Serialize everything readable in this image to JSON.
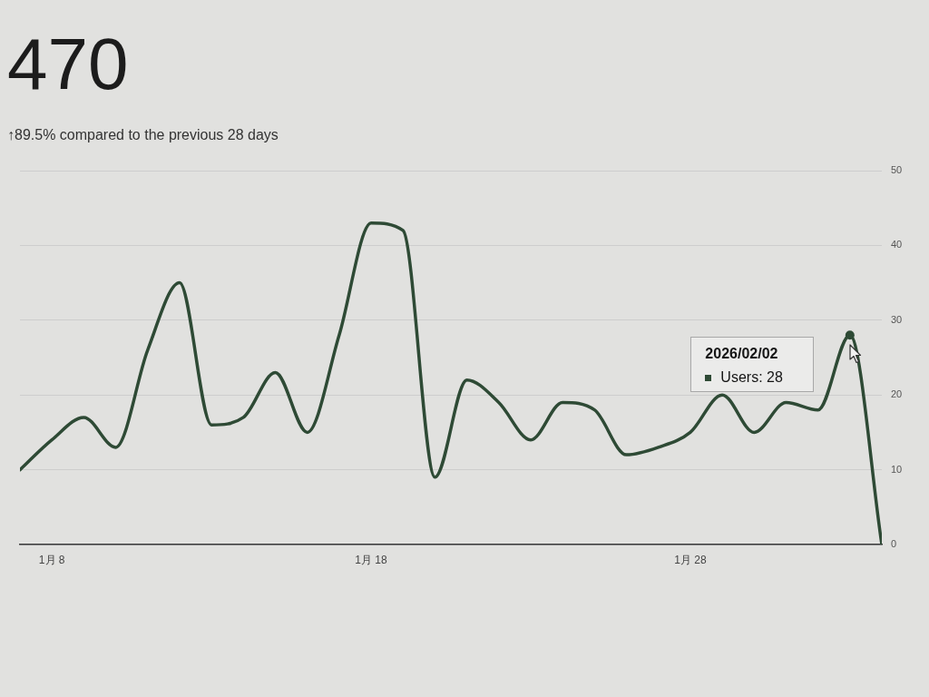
{
  "chart_data": {
    "type": "line",
    "title": "470",
    "subtitle": "↑89.5% compared to the previous 28 days",
    "x": [
      "2026-01-07",
      "2026-01-08",
      "2026-01-09",
      "2026-01-10",
      "2026-01-11",
      "2026-01-12",
      "2026-01-13",
      "2026-01-14",
      "2026-01-15",
      "2026-01-16",
      "2026-01-17",
      "2026-01-18",
      "2026-01-19",
      "2026-01-20",
      "2026-01-21",
      "2026-01-22",
      "2026-01-23",
      "2026-01-24",
      "2026-01-25",
      "2026-01-26",
      "2026-01-27",
      "2026-01-28",
      "2026-01-29",
      "2026-01-30",
      "2026-01-31",
      "2026-02-01",
      "2026-02-02",
      "2026-02-03"
    ],
    "xlim": [
      "2026-01-07",
      "2026-02-03"
    ],
    "xticks": [
      {
        "value": "2026-01-08",
        "label": "1月 8"
      },
      {
        "value": "2026-01-18",
        "label": "1月 18"
      },
      {
        "value": "2026-01-28",
        "label": "1月 28"
      }
    ],
    "ylim": [
      0,
      50
    ],
    "yticks": [
      0,
      10,
      20,
      30,
      40,
      50
    ],
    "grid": "y",
    "series": [
      {
        "color": "#2e4a35",
        "values": [
          10,
          14,
          17,
          13,
          26,
          35,
          16,
          17,
          23,
          15,
          28,
          43,
          42,
          9,
          22,
          19,
          14,
          19,
          18,
          12,
          13,
          15,
          20,
          15,
          19,
          18,
          28,
          0
        ]
      },
      {
        "type": "scatter",
        "x": [
          "2026-02-02"
        ],
        "values": [
          28
        ],
        "color": "#2e4a35",
        "marker": "circle"
      }
    ],
    "annotations": [
      "2026/02/02",
      "Users: 28"
    ]
  }
}
